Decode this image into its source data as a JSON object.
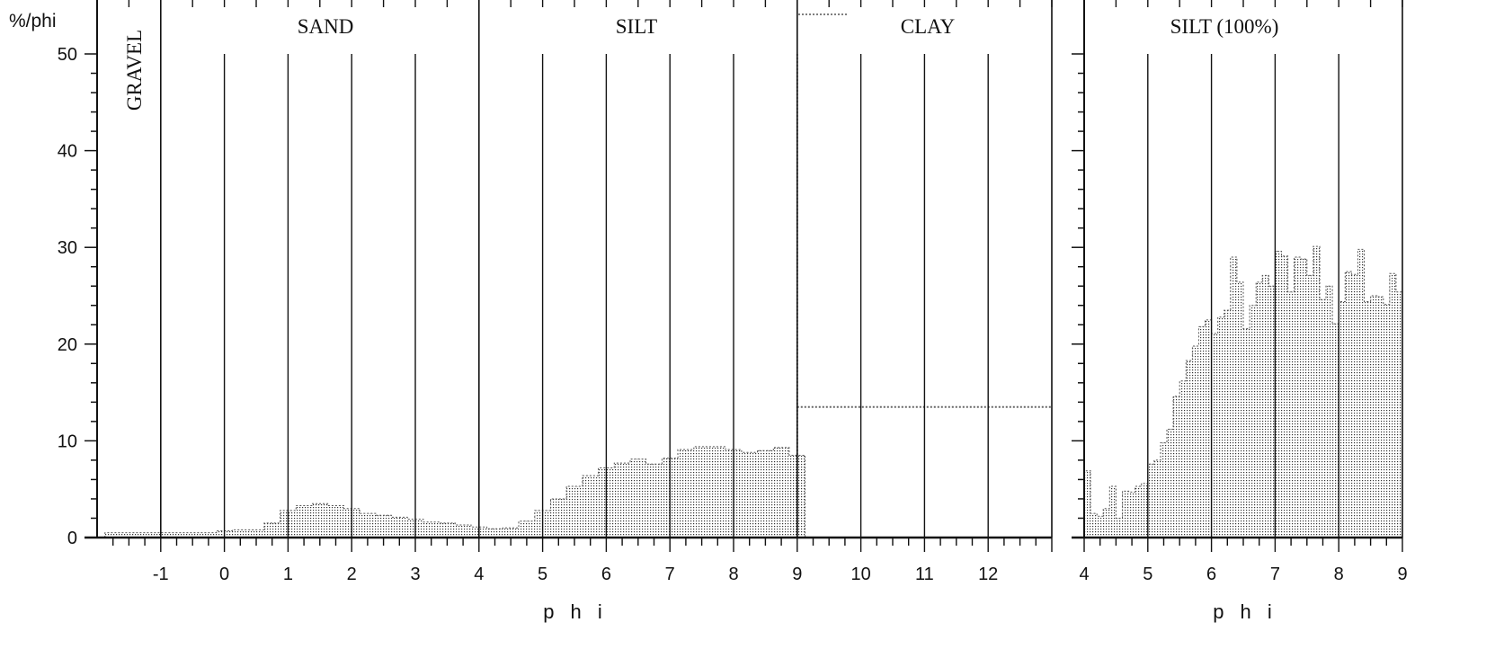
{
  "chart_data": [
    {
      "type": "area",
      "ylabel": "%/phi",
      "xlabel": "p h i",
      "xlim": [
        -2,
        13
      ],
      "ylim": [
        0,
        50
      ],
      "x_ticks": [
        "-1",
        "0",
        "1",
        "2",
        "3",
        "4",
        "5",
        "6",
        "7",
        "8",
        "9",
        "10",
        "11",
        "12"
      ],
      "y_ticks": [
        "0",
        "10",
        "20",
        "30",
        "40",
        "50"
      ],
      "zones": [
        "GRAVEL",
        "SAND",
        "SILT",
        "CLAY"
      ],
      "grid": "vertical lines at each integer phi",
      "series": [
        {
          "x": [
            -1.75,
            -1.5,
            -1.25,
            -1.0,
            -0.75,
            -0.5,
            -0.25,
            0.0,
            0.25,
            0.5,
            0.75,
            1.0,
            1.25,
            1.5,
            1.75,
            2.0,
            2.25,
            2.5,
            2.75,
            3.0,
            3.25,
            3.5,
            3.75,
            4.0,
            4.25,
            4.5,
            4.75,
            5.0,
            5.25,
            5.5,
            5.75,
            6.0,
            6.25,
            6.5,
            6.75,
            7.0,
            7.25,
            7.5,
            7.75,
            8.0,
            8.25,
            8.5,
            8.75,
            9.0
          ],
          "y": [
            0.5,
            0.5,
            0.5,
            0.5,
            0.5,
            0.5,
            0.5,
            0.7,
            0.8,
            0.8,
            1.5,
            2.8,
            3.3,
            3.5,
            3.3,
            3.0,
            2.5,
            2.3,
            2.1,
            1.9,
            1.6,
            1.5,
            1.3,
            1.1,
            0.9,
            1.0,
            1.7,
            2.8,
            4.0,
            5.3,
            6.4,
            7.2,
            7.7,
            8.1,
            7.6,
            8.2,
            9.1,
            9.4,
            9.4,
            9.1,
            8.8,
            9.0,
            9.3,
            8.5
          ]
        },
        {
          "x": [
            9.0,
            13.0
          ],
          "y": [
            13.5,
            13.5
          ]
        }
      ]
    },
    {
      "type": "bar",
      "title": "SILT (100%)",
      "xlabel": "p h i",
      "xlim": [
        4,
        9
      ],
      "ylim": [
        0,
        50
      ],
      "x_ticks": [
        "4",
        "5",
        "6",
        "7",
        "8",
        "9"
      ],
      "grid": "vertical lines at each integer phi",
      "series": [
        {
          "x": [
            4.05,
            4.15,
            4.25,
            4.35,
            4.45,
            4.55,
            4.65,
            4.75,
            4.85,
            4.95,
            5.05,
            5.15,
            5.25,
            5.35,
            5.45,
            5.55,
            5.65,
            5.75,
            5.85,
            5.95,
            6.05,
            6.15,
            6.25,
            6.35,
            6.45,
            6.55,
            6.65,
            6.75,
            6.85,
            6.95,
            7.05,
            7.15,
            7.25,
            7.35,
            7.45,
            7.55,
            7.65,
            7.75,
            7.85,
            7.95,
            8.05,
            8.15,
            8.25,
            8.35,
            8.45,
            8.55,
            8.65,
            8.75,
            8.85,
            8.95
          ],
          "y": [
            6.9,
            2.5,
            2.2,
            3.0,
            5.3,
            2.0,
            4.8,
            4.7,
            5.3,
            5.6,
            7.6,
            8.0,
            9.8,
            11.2,
            14.6,
            16.2,
            18.3,
            19.8,
            21.8,
            22.5,
            21.1,
            22.8,
            23.5,
            29.0,
            26.4,
            21.6,
            24.0,
            26.4,
            27.1,
            26.0,
            29.6,
            29.1,
            25.4,
            29.0,
            28.8,
            27.1,
            30.1,
            24.6,
            26.0,
            22.1,
            24.4,
            27.5,
            27.2,
            29.8,
            24.4,
            25.0,
            24.9,
            24.1,
            27.3,
            25.4
          ]
        }
      ]
    }
  ]
}
